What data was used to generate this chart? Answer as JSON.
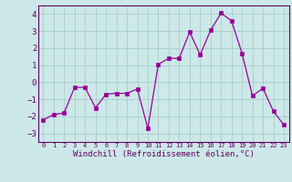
{
  "x": [
    0,
    1,
    2,
    3,
    4,
    5,
    6,
    7,
    8,
    9,
    10,
    11,
    12,
    13,
    14,
    15,
    16,
    17,
    18,
    19,
    20,
    21,
    22,
    23
  ],
  "y": [
    -2.2,
    -1.9,
    -1.8,
    -0.3,
    -0.3,
    -1.5,
    -0.7,
    -0.65,
    -0.65,
    -0.4,
    -2.7,
    1.05,
    1.4,
    1.4,
    2.95,
    1.6,
    3.05,
    4.05,
    3.6,
    1.7,
    -0.8,
    -0.35,
    -1.7,
    -2.5
  ],
  "line_color": "#990099",
  "marker": "s",
  "marker_size": 2.2,
  "bg_color": "#cce8e8",
  "grid_color": "#aacccc",
  "xlabel": "Windchill (Refroidissement éolien,°C)",
  "xlabel_color": "#660066",
  "tick_color": "#660066",
  "ylim": [
    -3.5,
    4.5
  ],
  "xlim": [
    -0.5,
    23.5
  ],
  "yticks": [
    -3,
    -2,
    -1,
    0,
    1,
    2,
    3,
    4
  ],
  "xticks": [
    0,
    1,
    2,
    3,
    4,
    5,
    6,
    7,
    8,
    9,
    10,
    11,
    12,
    13,
    14,
    15,
    16,
    17,
    18,
    19,
    20,
    21,
    22,
    23
  ]
}
